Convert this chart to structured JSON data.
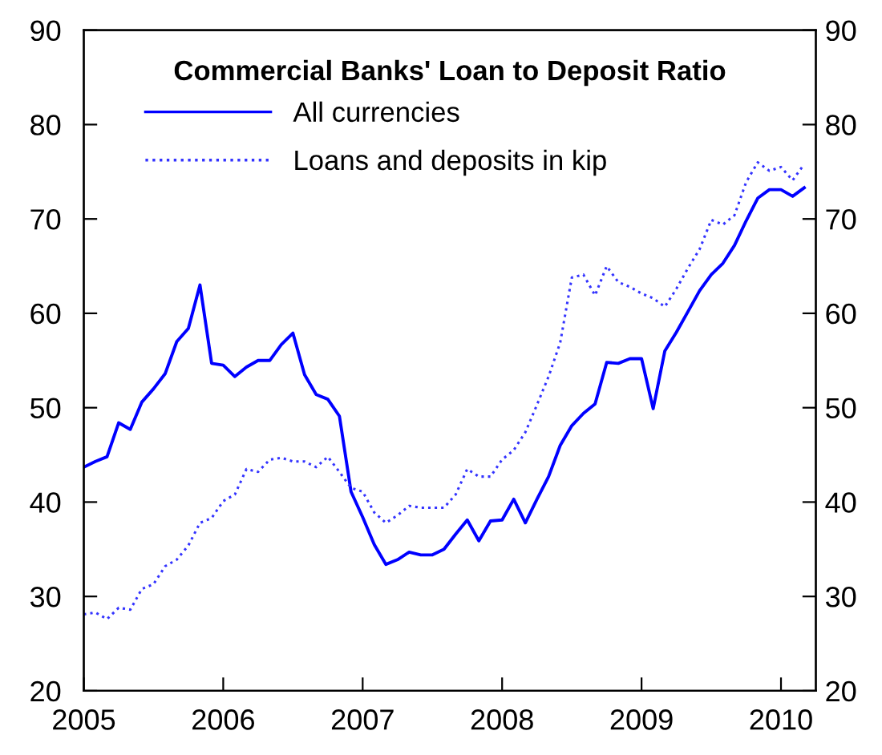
{
  "chart_data": {
    "type": "line",
    "title": "Commercial Banks' Loan to Deposit Ratio",
    "x": [
      "2005-01",
      "2005-02",
      "2005-03",
      "2005-04",
      "2005-05",
      "2005-06",
      "2005-07",
      "2005-08",
      "2005-09",
      "2005-10",
      "2005-11",
      "2005-12",
      "2006-01",
      "2006-02",
      "2006-03",
      "2006-04",
      "2006-05",
      "2006-06",
      "2006-07",
      "2006-08",
      "2006-09",
      "2006-10",
      "2006-11",
      "2006-12",
      "2007-01",
      "2007-02",
      "2007-03",
      "2007-04",
      "2007-05",
      "2007-06",
      "2007-07",
      "2007-08",
      "2007-09",
      "2007-10",
      "2007-11",
      "2007-12",
      "2008-01",
      "2008-02",
      "2008-03",
      "2008-04",
      "2008-05",
      "2008-06",
      "2008-07",
      "2008-08",
      "2008-09",
      "2008-10",
      "2008-11",
      "2008-12",
      "2009-01",
      "2009-02",
      "2009-03",
      "2009-04",
      "2009-05",
      "2009-06",
      "2009-07",
      "2009-08",
      "2009-09",
      "2009-10",
      "2009-11",
      "2009-12",
      "2010-01",
      "2010-02",
      "2010-03"
    ],
    "series": [
      {
        "name": "All currencies",
        "color": "#0000ff",
        "line_style": "solid",
        "values": [
          43.7,
          44.3,
          44.8,
          48.4,
          47.7,
          50.6,
          52.0,
          53.6,
          57.0,
          58.4,
          63.0,
          54.7,
          54.5,
          53.3,
          54.3,
          55.0,
          55.0,
          56.7,
          57.9,
          53.5,
          51.4,
          50.9,
          49.1,
          41.1,
          38.4,
          35.5,
          33.4,
          33.9,
          34.7,
          34.4,
          34.4,
          35.0,
          36.6,
          38.1,
          35.9,
          38.0,
          38.1,
          40.3,
          37.8,
          40.3,
          42.7,
          46.0,
          48.1,
          49.4,
          50.4,
          54.8,
          54.7,
          55.2,
          55.2,
          49.9,
          56.0,
          58.0,
          60.2,
          62.4,
          64.1,
          65.3,
          67.2,
          69.8,
          72.2,
          73.1,
          73.1,
          72.4,
          73.3
        ]
      },
      {
        "name": "Loans and deposits in kip",
        "color": "#3333ff",
        "line_style": "dotted",
        "values": [
          28.1,
          28.3,
          27.6,
          28.8,
          28.6,
          30.8,
          31.3,
          33.2,
          33.9,
          35.4,
          37.8,
          38.3,
          40.1,
          40.8,
          43.5,
          43.2,
          44.5,
          44.7,
          44.3,
          44.3,
          43.7,
          44.8,
          43.2,
          41.5,
          41.1,
          38.9,
          37.8,
          38.6,
          39.6,
          39.4,
          39.4,
          39.4,
          40.8,
          43.5,
          42.7,
          42.7,
          44.5,
          45.5,
          47.4,
          50.3,
          53.3,
          56.9,
          63.8,
          64.1,
          61.9,
          65.0,
          63.3,
          62.8,
          62.1,
          61.6,
          60.7,
          62.6,
          64.8,
          66.8,
          69.9,
          69.4,
          70.4,
          73.9,
          76.0,
          75.1,
          75.5,
          74.1,
          75.8
        ]
      }
    ],
    "xlim": [
      "2005-01",
      "2010-04"
    ],
    "xticks": [
      "2005",
      "2006",
      "2007",
      "2008",
      "2009",
      "2010"
    ],
    "ylim": [
      20,
      90
    ],
    "yticks": [
      20,
      30,
      40,
      50,
      60,
      70,
      80,
      90
    ],
    "y2lim": [
      20,
      90
    ],
    "y2ticks": [
      20,
      30,
      40,
      50,
      60,
      70,
      80,
      90
    ],
    "grid": false,
    "legend": "top left",
    "marker": "none"
  }
}
